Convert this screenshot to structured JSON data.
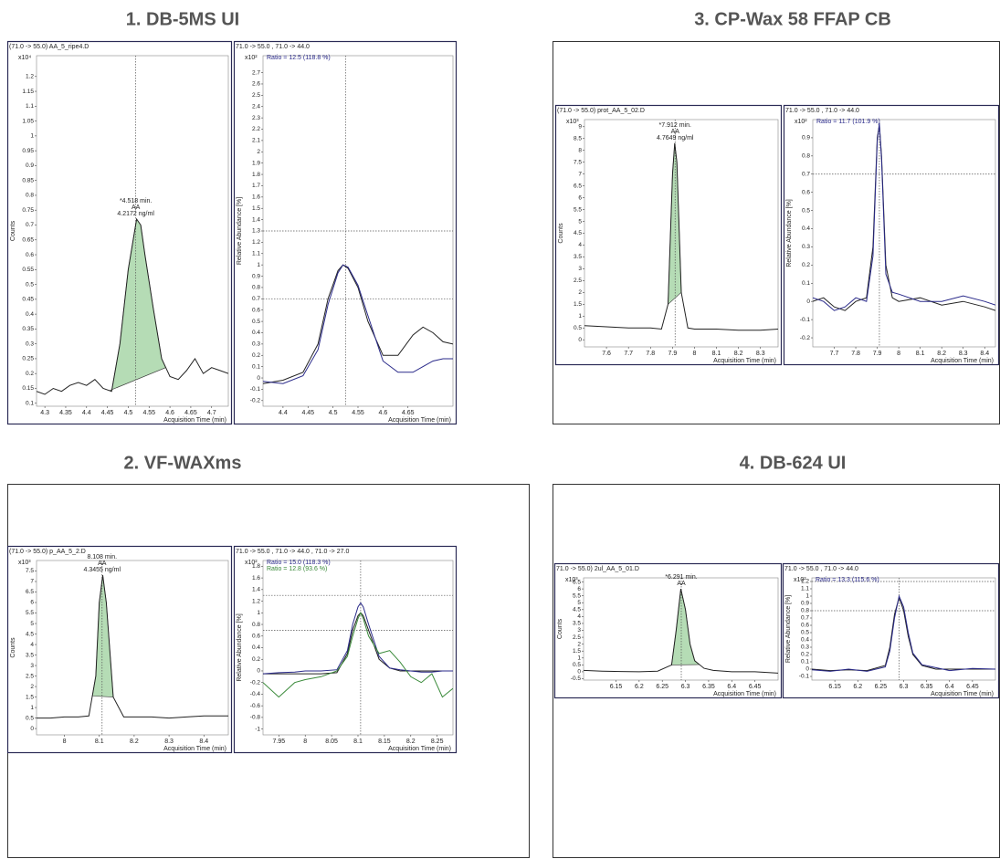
{
  "panels": [
    {
      "title": "1. DB-5MS UI"
    },
    {
      "title": "3. CP-Wax 58 FFAP CB"
    },
    {
      "title": "2. VF-WAXms"
    },
    {
      "title": "4. DB-624 UI"
    }
  ],
  "chart_data": [
    {
      "type": "line",
      "title": "(71.0 -> 55.0) AA_5_ripe4.D",
      "ylabel": "Counts",
      "y_multiplier": "x10⁴",
      "xlabel": "Acquisition Time (min)",
      "x": [
        4.28,
        4.3,
        4.32,
        4.34,
        4.36,
        4.38,
        4.4,
        4.42,
        4.44,
        4.46,
        4.48,
        4.5,
        4.52,
        4.53,
        4.54,
        4.56,
        4.58,
        4.6,
        4.62,
        4.64,
        4.66,
        4.68,
        4.7,
        4.72,
        4.74
      ],
      "series": [
        {
          "color": "#222222",
          "values": [
            0.14,
            0.13,
            0.15,
            0.14,
            0.16,
            0.17,
            0.16,
            0.18,
            0.15,
            0.14,
            0.3,
            0.55,
            0.72,
            0.7,
            0.6,
            0.42,
            0.25,
            0.19,
            0.18,
            0.21,
            0.25,
            0.2,
            0.22,
            0.21,
            0.2
          ]
        }
      ],
      "shaded_x": [
        4.455,
        4.59
      ],
      "shade_color": "#b5dcb5",
      "peak_label": [
        "*4.518 min.",
        "AA",
        "4.2172 ng/ml"
      ],
      "reference_x": [
        4.518
      ],
      "reference_y": [],
      "xlim": [
        4.28,
        4.74
      ],
      "xticks": [
        4.3,
        4.35,
        4.4,
        4.45,
        4.5,
        4.55,
        4.6,
        4.65,
        4.7
      ],
      "ylim": [
        0.09,
        1.27
      ],
      "yticks": [
        0.1,
        0.15,
        0.2,
        0.25,
        0.3,
        0.35,
        0.4,
        0.45,
        0.5,
        0.55,
        0.6,
        0.65,
        0.7,
        0.75,
        0.8,
        0.85,
        0.9,
        0.95,
        1,
        1.05,
        1.1,
        1.15,
        1.2
      ]
    },
    {
      "type": "line",
      "title": "71.0 -> 55.0 , 71.0 -> 44.0",
      "ylabel": "Relative Abundance [%]",
      "y_multiplier": "x10²",
      "xlabel": "Acquisition Time (min)",
      "ratios": [
        {
          "text": "Ratio = 12.5 (118.8 %)",
          "color": "#2a2a8a"
        }
      ],
      "x": [
        4.36,
        4.4,
        4.44,
        4.47,
        4.49,
        4.51,
        4.52,
        4.53,
        4.55,
        4.57,
        4.6,
        4.63,
        4.66,
        4.68,
        4.7,
        4.72,
        4.74
      ],
      "series": [
        {
          "color": "#222222",
          "values": [
            -0.05,
            -0.02,
            0.05,
            0.3,
            0.7,
            0.95,
            1.0,
            0.97,
            0.8,
            0.5,
            0.2,
            0.2,
            0.38,
            0.45,
            0.4,
            0.32,
            0.3
          ]
        },
        {
          "color": "#2a2a8a",
          "values": [
            -0.03,
            -0.05,
            0.02,
            0.25,
            0.65,
            0.93,
            1.0,
            0.98,
            0.82,
            0.55,
            0.15,
            0.05,
            0.05,
            0.1,
            0.15,
            0.17,
            0.17
          ]
        }
      ],
      "reference_x": [
        4.525
      ],
      "reference_y": [
        1.3,
        0.7
      ],
      "xlim": [
        4.36,
        4.74
      ],
      "xticks": [
        4.4,
        4.45,
        4.5,
        4.55,
        4.6,
        4.65
      ],
      "ylim": [
        -0.25,
        2.85
      ],
      "yticks": [
        -0.2,
        -0.1,
        0,
        0.1,
        0.2,
        0.3,
        0.4,
        0.5,
        0.6,
        0.7,
        0.8,
        0.9,
        1,
        1.1,
        1.2,
        1.3,
        1.4,
        1.5,
        1.6,
        1.7,
        1.8,
        1.9,
        2,
        2.1,
        2.2,
        2.3,
        2.4,
        2.5,
        2.6,
        2.7
      ]
    },
    {
      "type": "line",
      "title": "(71.0 -> 55.0) prot_AA_5_02.D",
      "ylabel": "Counts",
      "y_multiplier": "x10³",
      "xlabel": "Acquisition Time (min)",
      "x": [
        7.5,
        7.6,
        7.7,
        7.8,
        7.85,
        7.88,
        7.9,
        7.91,
        7.92,
        7.94,
        7.97,
        8.0,
        8.1,
        8.2,
        8.3,
        8.38
      ],
      "series": [
        {
          "color": "#222222",
          "values": [
            0.6,
            0.55,
            0.5,
            0.5,
            0.45,
            1.5,
            7.0,
            8.3,
            7.5,
            2.0,
            0.5,
            0.45,
            0.45,
            0.4,
            0.4,
            0.45
          ]
        }
      ],
      "shaded_x": [
        7.88,
        7.94
      ],
      "shade_color": "#b5dcb5",
      "peak_label": [
        "*7.912 min.",
        "AA",
        "4.7649 ng/ml"
      ],
      "reference_x": [
        7.912
      ],
      "reference_y": [],
      "xlim": [
        7.5,
        8.38
      ],
      "xticks": [
        7.6,
        7.7,
        7.8,
        7.9,
        8,
        8.1,
        8.2,
        8.3
      ],
      "ylim": [
        -0.3,
        9.3
      ],
      "yticks": [
        0,
        0.5,
        1,
        1.5,
        2,
        2.5,
        3,
        3.5,
        4,
        4.5,
        5,
        5.5,
        6,
        6.5,
        7,
        7.5,
        8,
        8.5,
        9
      ]
    },
    {
      "type": "line",
      "title": "71.0 -> 55.0 , 71.0 -> 44.0",
      "ylabel": "Relative Abundance [%]",
      "y_multiplier": "x10²",
      "xlabel": "Acquisition Time (min)",
      "ratios": [
        {
          "text": "Ratio = 11.7 (101.9 %)",
          "color": "#2a2a8a"
        }
      ],
      "x": [
        7.6,
        7.65,
        7.7,
        7.75,
        7.8,
        7.85,
        7.88,
        7.9,
        7.91,
        7.92,
        7.94,
        7.97,
        8.0,
        8.1,
        8.2,
        8.3,
        8.4,
        8.45
      ],
      "series": [
        {
          "color": "#222222",
          "values": [
            0.0,
            0.02,
            -0.03,
            -0.05,
            0.0,
            0.02,
            0.3,
            0.9,
            0.97,
            0.8,
            0.2,
            0.02,
            0.0,
            0.02,
            -0.02,
            0.0,
            -0.03,
            -0.05
          ]
        },
        {
          "color": "#2a2a8a",
          "values": [
            0.02,
            0.0,
            -0.05,
            -0.03,
            0.02,
            0.0,
            0.25,
            0.88,
            0.98,
            0.78,
            0.15,
            0.05,
            0.04,
            0.0,
            0.0,
            0.03,
            0.0,
            -0.02
          ]
        }
      ],
      "reference_x": [
        7.91
      ],
      "reference_y": [
        0.7
      ],
      "xlim": [
        7.6,
        8.45
      ],
      "xticks": [
        7.7,
        7.8,
        7.9,
        8,
        8.1,
        8.2,
        8.3,
        8.4
      ],
      "ylim": [
        -0.25,
        1.0
      ],
      "yticks": [
        -0.2,
        -0.1,
        0,
        0.1,
        0.2,
        0.3,
        0.4,
        0.5,
        0.6,
        0.7,
        0.8,
        0.9
      ]
    },
    {
      "type": "line",
      "title": "(71.0 -> 55.0) p_AA_5_2.D",
      "ylabel": "Counts",
      "y_multiplier": "x10³",
      "xlabel": "Acquisition Time (min)",
      "x": [
        7.92,
        7.96,
        8.0,
        8.04,
        8.07,
        8.09,
        8.1,
        8.11,
        8.12,
        8.14,
        8.17,
        8.2,
        8.25,
        8.3,
        8.35,
        8.4,
        8.47
      ],
      "series": [
        {
          "color": "#222222",
          "values": [
            0.5,
            0.5,
            0.55,
            0.55,
            0.6,
            2.5,
            6.0,
            7.3,
            6.0,
            1.5,
            0.55,
            0.55,
            0.55,
            0.5,
            0.55,
            0.6,
            0.6
          ]
        }
      ],
      "shaded_x": [
        8.08,
        8.14
      ],
      "shade_color": "#b5dcb5",
      "peak_label": [
        "8.108 min.",
        "AA",
        "4.3455 ng/ml"
      ],
      "reference_x": [
        8.108
      ],
      "reference_y": [],
      "xlim": [
        7.92,
        8.47
      ],
      "xticks": [
        8,
        8.1,
        8.2,
        8.3,
        8.4
      ],
      "ylim": [
        -0.3,
        8.0
      ],
      "yticks": [
        0,
        0.5,
        1,
        1.5,
        2,
        2.5,
        3,
        3.5,
        4,
        4.5,
        5,
        5.5,
        6,
        6.5,
        7,
        7.5
      ]
    },
    {
      "type": "line",
      "title": "71.0 -> 55.0 , 71.0 -> 44.0 , 71.0 -> 27.0",
      "ylabel": "Relative Abundance [%]",
      "y_multiplier": "x10²",
      "xlabel": "Acquisition Time (min)",
      "ratios": [
        {
          "text": "Ratio = 15.0 (118.3 %)",
          "color": "#2a2a8a"
        },
        {
          "text": "Ratio = 12.8 (93.6 %)",
          "color": "#3a8a3a"
        }
      ],
      "x": [
        7.92,
        7.95,
        7.98,
        8.0,
        8.03,
        8.06,
        8.08,
        8.09,
        8.1,
        8.105,
        8.11,
        8.12,
        8.14,
        8.16,
        8.18,
        8.2,
        8.22,
        8.24,
        8.26,
        8.28
      ],
      "series": [
        {
          "color": "#222222",
          "values": [
            -0.05,
            -0.05,
            -0.05,
            -0.05,
            -0.05,
            -0.03,
            0.3,
            0.7,
            0.95,
            1.0,
            0.95,
            0.7,
            0.2,
            0.05,
            0.0,
            0.0,
            0.0,
            0.0,
            0.0,
            0.0
          ]
        },
        {
          "color": "#2a2a8a",
          "values": [
            -0.05,
            -0.03,
            -0.02,
            0.0,
            0.0,
            0.02,
            0.35,
            0.8,
            1.1,
            1.17,
            1.1,
            0.8,
            0.25,
            0.05,
            0.02,
            0.0,
            -0.02,
            -0.02,
            0.0,
            0.0
          ]
        },
        {
          "color": "#3a8a3a",
          "values": [
            -0.2,
            -0.45,
            -0.2,
            -0.15,
            -0.1,
            0.0,
            0.25,
            0.6,
            0.9,
            1.0,
            0.9,
            0.6,
            0.3,
            0.35,
            0.15,
            -0.1,
            -0.2,
            -0.05,
            -0.45,
            -0.3
          ]
        }
      ],
      "reference_x": [
        8.105
      ],
      "reference_y": [
        1.3,
        0.7
      ],
      "xlim": [
        7.92,
        8.28
      ],
      "xticks": [
        7.95,
        8,
        8.05,
        8.1,
        8.15,
        8.2,
        8.25
      ],
      "ylim": [
        -1.1,
        1.9
      ],
      "yticks": [
        -1,
        -0.8,
        -0.6,
        -0.4,
        -0.2,
        0,
        0.2,
        0.4,
        0.6,
        0.8,
        1,
        1.2,
        1.4,
        1.6,
        1.8
      ]
    },
    {
      "type": "line",
      "title": "71.0 -> 55.0) 2ul_AA_5_01.D",
      "ylabel": "Counts",
      "y_multiplier": "x10³",
      "xlabel": "Acquisition Time (min)",
      "x": [
        6.08,
        6.12,
        6.16,
        6.2,
        6.24,
        6.27,
        6.28,
        6.29,
        6.3,
        6.31,
        6.32,
        6.34,
        6.36,
        6.4,
        6.45,
        6.5
      ],
      "series": [
        {
          "color": "#222222",
          "values": [
            0.1,
            0.05,
            0.02,
            0.0,
            0.05,
            0.5,
            3.0,
            6.0,
            4.5,
            2.0,
            0.8,
            0.25,
            0.1,
            0.0,
            0.0,
            -0.1
          ]
        }
      ],
      "shaded_x": [
        6.27,
        6.33
      ],
      "shade_color": "#b5dcb5",
      "peak_label": [
        "*6.291 min.",
        "AA"
      ],
      "reference_x": [
        6.291
      ],
      "reference_y": [],
      "xlim": [
        6.08,
        6.5
      ],
      "xticks": [
        6.15,
        6.2,
        6.25,
        6.3,
        6.35,
        6.4,
        6.45
      ],
      "ylim": [
        -0.6,
        6.8
      ],
      "yticks": [
        -0.5,
        0,
        0.5,
        1,
        1.5,
        2,
        2.5,
        3,
        3.5,
        4,
        4.5,
        5,
        5.5,
        6,
        6.5
      ]
    },
    {
      "type": "line",
      "title": "71.0 -> 55.0 , 71.0 -> 44.0",
      "ylabel": "Relative Abundance [%]",
      "y_multiplier": "x10²",
      "xlabel": "Acquisition Time (min)",
      "ratios": [
        {
          "text": "Ratio = 13.3 (115.6 %)",
          "color": "#2a2a8a"
        }
      ],
      "x": [
        6.1,
        6.14,
        6.18,
        6.22,
        6.26,
        6.27,
        6.28,
        6.29,
        6.3,
        6.31,
        6.32,
        6.34,
        6.37,
        6.4,
        6.45,
        6.5
      ],
      "series": [
        {
          "color": "#222222",
          "values": [
            0.0,
            -0.02,
            -0.01,
            -0.02,
            0.05,
            0.3,
            0.75,
            0.98,
            0.8,
            0.45,
            0.2,
            0.05,
            0.0,
            0.0,
            0.0,
            0.0
          ]
        },
        {
          "color": "#2a2a8a",
          "values": [
            -0.01,
            -0.03,
            0.0,
            -0.03,
            0.03,
            0.25,
            0.7,
            1.0,
            0.85,
            0.5,
            0.22,
            0.06,
            0.02,
            -0.02,
            0.01,
            0.0
          ]
        }
      ],
      "reference_x": [
        6.29
      ],
      "reference_y": [
        1.2,
        0.8
      ],
      "xlim": [
        6.1,
        6.5
      ],
      "xticks": [
        6.15,
        6.2,
        6.25,
        6.3,
        6.35,
        6.4,
        6.45
      ],
      "ylim": [
        -0.15,
        1.25
      ],
      "yticks": [
        -0.1,
        0,
        0.1,
        0.2,
        0.3,
        0.4,
        0.5,
        0.6,
        0.7,
        0.8,
        0.9,
        1,
        1.1,
        1.2
      ]
    }
  ]
}
